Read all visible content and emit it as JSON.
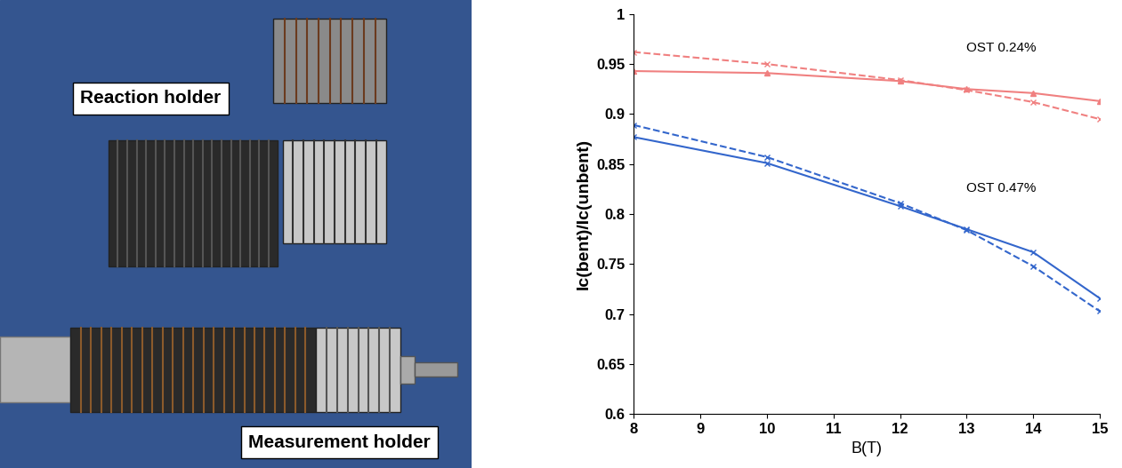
{
  "figure_labels": [
    "Reaction holder",
    "Measurement holder"
  ],
  "chart_data": {
    "type": "line",
    "x_label": "B(T)",
    "y_label": "Ic(bent)/Ic(unbent)",
    "x": [
      8,
      10,
      12,
      13,
      14,
      15
    ],
    "xlim": [
      8,
      15
    ],
    "xticks": [
      8,
      9,
      10,
      11,
      12,
      13,
      14,
      15
    ],
    "ylim": [
      0.6,
      1
    ],
    "yticks": [
      0.6,
      0.65,
      0.7,
      0.75,
      0.8,
      0.85,
      0.9,
      0.95,
      1
    ],
    "grid": false,
    "series": [
      {
        "name": "OST 0.24%",
        "color": "#f08080",
        "line_style": "solid",
        "marker": "triangle",
        "values": [
          0.943,
          0.941,
          0.933,
          0.925,
          0.921,
          0.913
        ]
      },
      {
        "color": "#f08080",
        "line_style": "dashed",
        "marker": "x",
        "values": [
          0.962,
          0.95,
          0.934,
          0.924,
          0.912,
          0.895
        ]
      },
      {
        "name": "OST 0.47%",
        "color": "#3366cc",
        "line_style": "solid",
        "marker": "x",
        "values": [
          0.877,
          0.851,
          0.808,
          0.785,
          0.762,
          0.716
        ]
      },
      {
        "color": "#3366cc",
        "line_style": "dashed",
        "marker": "x",
        "values": [
          0.889,
          0.857,
          0.811,
          0.784,
          0.748,
          0.703
        ]
      }
    ]
  }
}
